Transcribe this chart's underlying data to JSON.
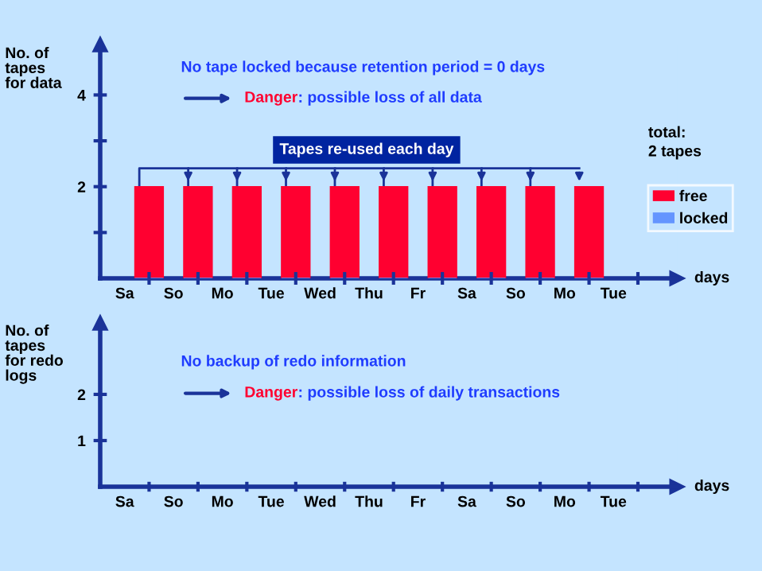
{
  "chart_data": [
    {
      "type": "bar",
      "ylabel": "No. of\ntapes\nfor data",
      "xlabel": "days",
      "categories": [
        "Sa",
        "So",
        "Mo",
        "Tue",
        "Wed",
        "Thu",
        "Fr",
        "Sa",
        "So",
        "Mo",
        "Tue"
      ],
      "series": [
        {
          "name": "free",
          "color": "#ff0030",
          "values": [
            2,
            2,
            2,
            2,
            2,
            2,
            2,
            2,
            2,
            2,
            null
          ]
        },
        {
          "name": "locked",
          "color": "#6495ff",
          "values": [
            0,
            0,
            0,
            0,
            0,
            0,
            0,
            0,
            0,
            0,
            null
          ]
        }
      ],
      "ylim": [
        0,
        5.1
      ],
      "yticks": [
        {
          "value": 1,
          "label": null
        },
        2,
        {
          "value": 3,
          "label": null
        },
        4
      ],
      "legend": "right",
      "grid": false,
      "annotations": [
        "No tape locked because retention period = 0 days",
        "Danger: possible loss of all data",
        "Tapes re-used each day",
        "total:\n2 tapes"
      ]
    },
    {
      "type": "bar",
      "ylabel": "No. of\ntapes\nfor redo\nlogs",
      "xlabel": "days",
      "categories": [
        "Sa",
        "So",
        "Mo",
        "Tue",
        "Wed",
        "Thu",
        "Fr",
        "Sa",
        "So",
        "Mo",
        "Tue"
      ],
      "values": [
        null,
        null,
        null,
        null,
        null,
        null,
        null,
        null,
        null,
        null,
        null
      ],
      "ylim": [
        0,
        3.55
      ],
      "yticks": [
        1,
        2
      ],
      "grid": false,
      "annotations": [
        "No backup of redo information",
        "Danger: possible loss of daily transactions"
      ]
    }
  ]
}
